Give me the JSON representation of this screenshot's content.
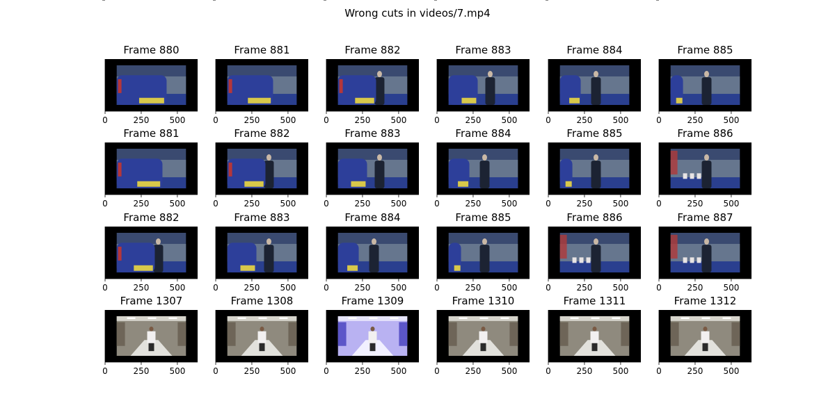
{
  "figure": {
    "suptitle": "Wrong cuts in videos/7.mp4"
  },
  "chart_data": {
    "type": "image_grid",
    "title": "Wrong cuts in videos/7.mp4",
    "rows": 4,
    "cols": 6,
    "image_axes": {
      "xticks": [
        0,
        250,
        500
      ],
      "yticks": [
        0,
        200
      ],
      "xlim": [
        0,
        640
      ],
      "ylim": [
        360,
        0
      ]
    },
    "panels": [
      {
        "title": "Frame 880",
        "scene": "stadium",
        "stage": 0
      },
      {
        "title": "Frame 881",
        "scene": "stadium",
        "stage": 1
      },
      {
        "title": "Frame 882",
        "scene": "stadium",
        "stage": 2
      },
      {
        "title": "Frame 883",
        "scene": "stadium",
        "stage": 3
      },
      {
        "title": "Frame 884",
        "scene": "stadium",
        "stage": 4
      },
      {
        "title": "Frame 885",
        "scene": "stadium",
        "stage": 5
      },
      {
        "title": "Frame 881",
        "scene": "stadium",
        "stage": 1
      },
      {
        "title": "Frame 882",
        "scene": "stadium",
        "stage": 2
      },
      {
        "title": "Frame 883",
        "scene": "stadium",
        "stage": 3
      },
      {
        "title": "Frame 884",
        "scene": "stadium",
        "stage": 4
      },
      {
        "title": "Frame 885",
        "scene": "stadium",
        "stage": 5
      },
      {
        "title": "Frame 886",
        "scene": "stadium",
        "stage": 6
      },
      {
        "title": "Frame 882",
        "scene": "stadium",
        "stage": 2
      },
      {
        "title": "Frame 883",
        "scene": "stadium",
        "stage": 3
      },
      {
        "title": "Frame 884",
        "scene": "stadium",
        "stage": 4
      },
      {
        "title": "Frame 885",
        "scene": "stadium",
        "stage": 5
      },
      {
        "title": "Frame 886",
        "scene": "stadium",
        "stage": 6
      },
      {
        "title": "Frame 887",
        "scene": "stadium",
        "stage": 6
      },
      {
        "title": "Frame 1307",
        "scene": "hallway",
        "stage": 0
      },
      {
        "title": "Frame 1308",
        "scene": "hallway",
        "stage": 0
      },
      {
        "title": "Frame 1309",
        "scene": "hallway-flash",
        "stage": 0
      },
      {
        "title": "Frame 1310",
        "scene": "hallway",
        "stage": 0
      },
      {
        "title": "Frame 1311",
        "scene": "hallway",
        "stage": 0
      },
      {
        "title": "Frame 1312",
        "scene": "hallway",
        "stage": 0
      }
    ],
    "colors": {
      "frame_border": "#000000",
      "stadium_sky": "#3a4a70",
      "stadium_crowd": "#6f7e93",
      "stadium_floor": "#2a3f8f",
      "jacket_blue": "#2d3f9a",
      "jacket_yellow": "#d8c84a",
      "coat_dark": "#1c2333",
      "hall_wall": "#8f8a7e",
      "hall_floor": "#e2e1dc",
      "hall_flash": "#b9b2f2"
    }
  }
}
